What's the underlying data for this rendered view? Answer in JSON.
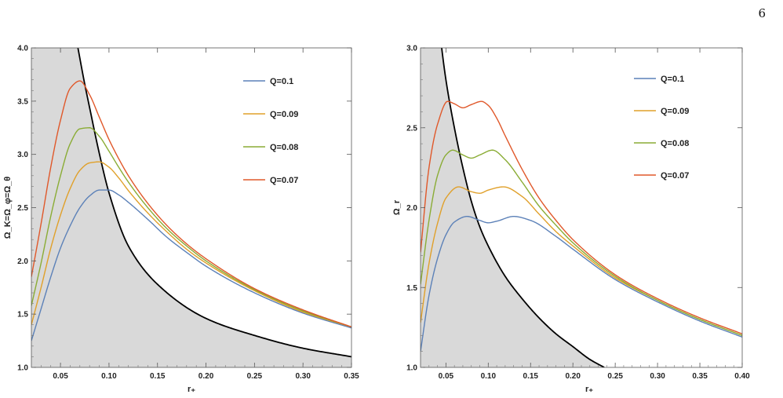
{
  "page": {
    "number": "6"
  },
  "chart_data": [
    {
      "type": "line",
      "xlabel": "r₊",
      "ylabel": "Ω_K=Ω_φ=Ω_θ",
      "xlim": [
        0.02,
        0.35
      ],
      "ylim": [
        1.0,
        4.0
      ],
      "xticks": [
        0.05,
        0.1,
        0.15,
        0.2,
        0.25,
        0.3,
        0.35
      ],
      "xtick_labels": [
        "0.05",
        "0.10",
        "0.15",
        "0.20",
        "0.25",
        "0.30",
        "0.35"
      ],
      "yticks": [
        1.0,
        1.5,
        2.0,
        2.5,
        3.0,
        3.5,
        4.0
      ],
      "ytick_labels": [
        "1.0",
        "1.5",
        "2.0",
        "2.5",
        "3.0",
        "3.5",
        "4.0"
      ],
      "legend_position": "top-right",
      "shaded_region": {
        "color": "#d9d9d9",
        "boundary_color": "#000000",
        "boundary": {
          "x": [
            0.02,
            0.04,
            0.06,
            0.068,
            0.075,
            0.08,
            0.09,
            0.1,
            0.12,
            0.15,
            0.2,
            0.25,
            0.3,
            0.35
          ],
          "y": [
            7.0,
            5.4,
            4.4,
            4.0,
            3.66,
            3.44,
            3.01,
            2.64,
            2.14,
            1.78,
            1.46,
            1.3,
            1.18,
            1.1
          ]
        }
      },
      "series": [
        {
          "name": "Q=0.1",
          "color": "#5c81b8",
          "x": [
            0.02,
            0.03,
            0.04,
            0.05,
            0.06,
            0.07,
            0.08,
            0.09,
            0.1,
            0.11,
            0.12,
            0.14,
            0.16,
            0.18,
            0.2,
            0.25,
            0.3,
            0.35
          ],
          "y": [
            1.25,
            1.55,
            1.85,
            2.12,
            2.33,
            2.5,
            2.61,
            2.665,
            2.665,
            2.62,
            2.55,
            2.39,
            2.22,
            2.08,
            1.95,
            1.7,
            1.51,
            1.37
          ]
        },
        {
          "name": "Q=0.09",
          "color": "#e0a02a",
          "x": [
            0.02,
            0.03,
            0.04,
            0.05,
            0.06,
            0.07,
            0.08,
            0.09,
            0.1,
            0.11,
            0.12,
            0.14,
            0.16,
            0.18,
            0.2,
            0.25,
            0.3,
            0.35
          ],
          "y": [
            1.4,
            1.75,
            2.12,
            2.43,
            2.68,
            2.85,
            2.92,
            2.93,
            2.88,
            2.78,
            2.66,
            2.45,
            2.27,
            2.11,
            1.98,
            1.72,
            1.52,
            1.38
          ]
        },
        {
          "name": "Q=0.08",
          "color": "#8aac35",
          "x": [
            0.02,
            0.03,
            0.04,
            0.05,
            0.06,
            0.07,
            0.08,
            0.09,
            0.1,
            0.11,
            0.12,
            0.14,
            0.16,
            0.18,
            0.2,
            0.25,
            0.3,
            0.35
          ],
          "y": [
            1.58,
            1.98,
            2.42,
            2.8,
            3.1,
            3.24,
            3.25,
            3.17,
            3.03,
            2.88,
            2.74,
            2.5,
            2.3,
            2.14,
            2.0,
            1.73,
            1.53,
            1.38
          ]
        },
        {
          "name": "Q=0.07",
          "color": "#e0582a",
          "x": [
            0.02,
            0.03,
            0.04,
            0.05,
            0.06,
            0.07,
            0.08,
            0.09,
            0.1,
            0.11,
            0.12,
            0.14,
            0.16,
            0.18,
            0.2,
            0.25,
            0.3,
            0.35
          ],
          "y": [
            1.85,
            2.35,
            2.88,
            3.32,
            3.62,
            3.69,
            3.56,
            3.35,
            3.14,
            2.96,
            2.8,
            2.54,
            2.33,
            2.16,
            2.02,
            1.74,
            1.54,
            1.38
          ]
        }
      ]
    },
    {
      "type": "line",
      "xlabel": "r₊",
      "ylabel": "Ω_r",
      "xlim": [
        0.02,
        0.4
      ],
      "ylim": [
        1.0,
        3.0
      ],
      "xticks": [
        0.05,
        0.1,
        0.15,
        0.2,
        0.25,
        0.3,
        0.35,
        0.4
      ],
      "xtick_labels": [
        "0.05",
        "0.10",
        "0.15",
        "0.20",
        "0.25",
        "0.30",
        "0.35",
        "0.40"
      ],
      "yticks": [
        1.0,
        1.5,
        2.0,
        2.5,
        3.0
      ],
      "ytick_labels": [
        "1.0",
        "1.5",
        "2.0",
        "2.5",
        "3.0"
      ],
      "legend_position": "top-right",
      "shaded_region": {
        "color": "#d9d9d9",
        "boundary_color": "#000000",
        "boundary": {
          "x": [
            0.02,
            0.03,
            0.04,
            0.045,
            0.05,
            0.06,
            0.07,
            0.08,
            0.09,
            0.1,
            0.12,
            0.14,
            0.16,
            0.18,
            0.2,
            0.22,
            0.237
          ],
          "y": [
            4.5,
            3.8,
            3.25,
            3.0,
            2.8,
            2.5,
            2.25,
            2.04,
            1.88,
            1.76,
            1.57,
            1.43,
            1.31,
            1.21,
            1.13,
            1.05,
            1.0
          ]
        }
      },
      "series": [
        {
          "name": "Q=0.1",
          "color": "#5c81b8",
          "x": [
            0.02,
            0.03,
            0.04,
            0.05,
            0.06,
            0.075,
            0.09,
            0.1,
            0.11,
            0.13,
            0.15,
            0.18,
            0.2,
            0.25,
            0.3,
            0.35,
            0.4
          ],
          "y": [
            1.1,
            1.45,
            1.68,
            1.83,
            1.91,
            1.945,
            1.92,
            1.905,
            1.915,
            1.945,
            1.92,
            1.82,
            1.74,
            1.55,
            1.41,
            1.29,
            1.19
          ]
        },
        {
          "name": "Q=0.09",
          "color": "#e0a02a",
          "x": [
            0.02,
            0.03,
            0.04,
            0.05,
            0.065,
            0.08,
            0.09,
            0.1,
            0.118,
            0.14,
            0.16,
            0.18,
            0.2,
            0.25,
            0.3,
            0.35,
            0.4
          ],
          "y": [
            1.28,
            1.65,
            1.9,
            2.06,
            2.13,
            2.1,
            2.09,
            2.11,
            2.13,
            2.07,
            1.96,
            1.85,
            1.76,
            1.56,
            1.42,
            1.3,
            1.2
          ]
        },
        {
          "name": "Q=0.08",
          "color": "#8aac35",
          "x": [
            0.02,
            0.03,
            0.04,
            0.05,
            0.058,
            0.07,
            0.08,
            0.09,
            0.105,
            0.12,
            0.14,
            0.16,
            0.18,
            0.2,
            0.25,
            0.3,
            0.35,
            0.4
          ],
          "y": [
            1.52,
            1.92,
            2.2,
            2.33,
            2.36,
            2.33,
            2.31,
            2.33,
            2.36,
            2.3,
            2.16,
            2.01,
            1.89,
            1.78,
            1.57,
            1.42,
            1.3,
            1.2
          ]
        },
        {
          "name": "Q=0.07",
          "color": "#e0582a",
          "x": [
            0.02,
            0.03,
            0.04,
            0.052,
            0.06,
            0.07,
            0.08,
            0.092,
            0.1,
            0.11,
            0.12,
            0.14,
            0.16,
            0.18,
            0.2,
            0.25,
            0.3,
            0.35,
            0.4
          ],
          "y": [
            1.72,
            2.25,
            2.52,
            2.665,
            2.65,
            2.625,
            2.645,
            2.665,
            2.64,
            2.56,
            2.45,
            2.24,
            2.06,
            1.92,
            1.8,
            1.58,
            1.43,
            1.31,
            1.21
          ]
        }
      ]
    }
  ]
}
